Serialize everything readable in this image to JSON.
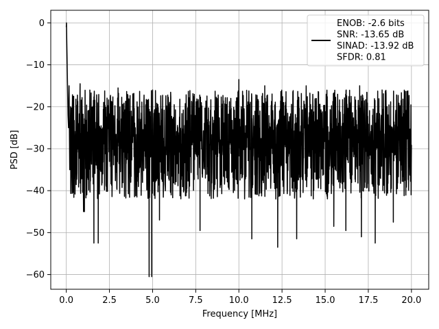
{
  "chart_data": {
    "type": "line",
    "title": "",
    "xlabel": "Frequency [MHz]",
    "ylabel": "PSD [dB]",
    "xlim": [
      -0.9,
      21.0
    ],
    "ylim": [
      -63.5,
      3.0
    ],
    "x_ticks": [
      0.0,
      2.5,
      5.0,
      7.5,
      10.0,
      12.5,
      15.0,
      17.5,
      20.0
    ],
    "x_tick_labels": [
      "0.0",
      "2.5",
      "5.0",
      "7.5",
      "10.0",
      "12.5",
      "15.0",
      "17.5",
      "20.0"
    ],
    "y_ticks": [
      0,
      -10,
      -20,
      -30,
      -40,
      -50,
      -60
    ],
    "y_tick_labels": [
      "0",
      "−10",
      "−20",
      "−30",
      "−40",
      "−50",
      "−60"
    ],
    "grid": true,
    "legend_position": "top-right",
    "series": [
      {
        "name": "ENOB: -2.6 bits\nSNR: -13.65 dB\nSINAD: -13.92 dB\nSFDR: 0.81",
        "color": "#000000",
        "x_start": 0.0,
        "x_end": 20.0,
        "initial_points": [
          [
            0.0,
            -1.0
          ],
          [
            0.01,
            0.0
          ],
          [
            0.03,
            -5.0
          ],
          [
            0.06,
            -12.0
          ],
          [
            0.1,
            -22.0
          ],
          [
            0.13,
            -25.0
          ],
          [
            0.16,
            -15.0
          ],
          [
            0.2,
            -35.0
          ],
          [
            0.25,
            -20.0
          ]
        ],
        "baseline_mean": -28.0,
        "noise_upper_envelope": -16.0,
        "noise_lower_envelope": -42.0,
        "notable_dips": [
          [
            1.0,
            -45.0
          ],
          [
            1.05,
            -45.0
          ],
          [
            1.6,
            -52.5
          ],
          [
            1.85,
            -52.5
          ],
          [
            4.8,
            -60.5
          ],
          [
            4.95,
            -60.5
          ],
          [
            5.4,
            -47.0
          ],
          [
            7.75,
            -49.5
          ],
          [
            10.75,
            -51.5
          ],
          [
            12.25,
            -53.5
          ],
          [
            13.35,
            -51.5
          ],
          [
            15.5,
            -48.5
          ],
          [
            16.2,
            -49.5
          ],
          [
            17.1,
            -51.0
          ],
          [
            17.9,
            -52.5
          ],
          [
            18.95,
            -47.5
          ]
        ],
        "notable_peaks": [
          [
            0.8,
            -14.5
          ],
          [
            3.0,
            -15.5
          ],
          [
            5.0,
            -16.0
          ],
          [
            10.0,
            -13.5
          ],
          [
            11.5,
            -15.0
          ],
          [
            13.9,
            -15.0
          ],
          [
            17.0,
            -15.0
          ],
          [
            18.3,
            -16.0
          ]
        ]
      }
    ]
  }
}
